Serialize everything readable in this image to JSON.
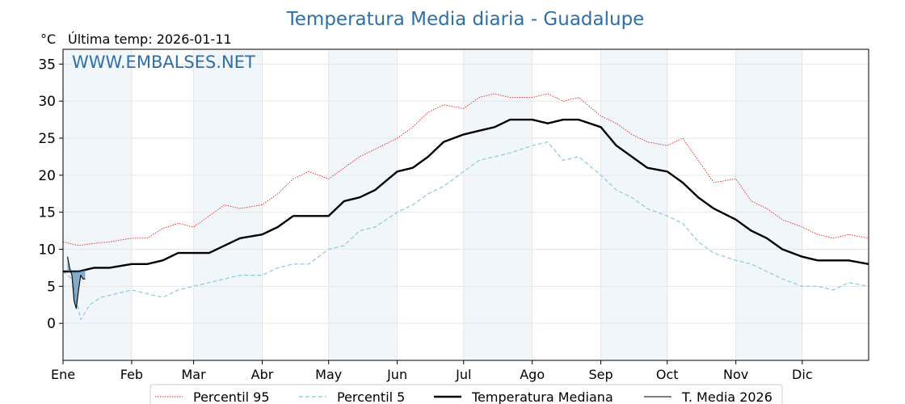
{
  "title": "Temperatura Media diaria - Guadalupe",
  "unit_label": "°C",
  "last_temp_label": "Última temp: 2026-01-11",
  "watermark": "WWW.EMBALSES.NET",
  "chart_data": {
    "type": "line",
    "x_unit": "day_of_year",
    "xlim": [
      1,
      365
    ],
    "ylim": [
      -5,
      37
    ],
    "yticks": [
      0,
      5,
      10,
      15,
      20,
      25,
      30,
      35
    ],
    "grid": true,
    "month_ticks": [
      {
        "label": "Ene",
        "day": 1
      },
      {
        "label": "Feb",
        "day": 32
      },
      {
        "label": "Mar",
        "day": 60
      },
      {
        "label": "Abr",
        "day": 91
      },
      {
        "label": "May",
        "day": 121
      },
      {
        "label": "Jun",
        "day": 152
      },
      {
        "label": "Jul",
        "day": 182
      },
      {
        "label": "Ago",
        "day": 213
      },
      {
        "label": "Sep",
        "day": 244
      },
      {
        "label": "Oct",
        "day": 274
      },
      {
        "label": "Nov",
        "day": 305
      },
      {
        "label": "Dic",
        "day": 335
      }
    ],
    "shaded_months": [
      "Ene",
      "Mar",
      "May",
      "Jul",
      "Sep",
      "Nov"
    ],
    "legend_position": "bottom-center",
    "series": [
      {
        "name": "Percentil 95",
        "color": "#e8231d",
        "style": "dotted",
        "x": [
          1,
          8,
          15,
          22,
          32,
          39,
          46,
          53,
          60,
          67,
          74,
          81,
          91,
          98,
          105,
          112,
          121,
          128,
          135,
          142,
          152,
          159,
          166,
          173,
          182,
          189,
          196,
          203,
          213,
          220,
          227,
          234,
          244,
          251,
          258,
          265,
          274,
          281,
          288,
          295,
          305,
          312,
          319,
          326,
          335,
          342,
          349,
          356,
          365
        ],
        "y": [
          11.0,
          10.5,
          10.8,
          11.0,
          11.5,
          11.5,
          12.8,
          13.5,
          13.0,
          14.5,
          16.0,
          15.5,
          16.0,
          17.5,
          19.5,
          20.5,
          19.5,
          21.0,
          22.5,
          23.5,
          25.0,
          26.5,
          28.5,
          29.5,
          29.0,
          30.5,
          31.0,
          30.5,
          30.5,
          31.0,
          30.0,
          30.5,
          28.0,
          27.0,
          25.5,
          24.5,
          24.0,
          25.0,
          22.0,
          19.0,
          19.5,
          16.5,
          15.5,
          14.0,
          13.0,
          12.0,
          11.5,
          12.0,
          11.5
        ]
      },
      {
        "name": "Percentil 5",
        "color": "#8cc8dc",
        "style": "dashed",
        "x": [
          1,
          5,
          9,
          13,
          18,
          25,
          32,
          39,
          46,
          53,
          60,
          67,
          74,
          81,
          91,
          98,
          105,
          112,
          121,
          128,
          135,
          142,
          152,
          159,
          166,
          173,
          182,
          189,
          196,
          203,
          213,
          220,
          227,
          234,
          244,
          251,
          258,
          265,
          274,
          281,
          288,
          295,
          305,
          312,
          319,
          326,
          335,
          342,
          349,
          356,
          365
        ],
        "y": [
          7.0,
          6.0,
          0.5,
          2.5,
          3.5,
          4.0,
          4.5,
          4.0,
          3.5,
          4.5,
          5.0,
          5.5,
          6.0,
          6.5,
          6.5,
          7.5,
          8.0,
          8.0,
          10.0,
          10.5,
          12.5,
          13.0,
          15.0,
          16.0,
          17.5,
          18.5,
          20.5,
          22.0,
          22.5,
          23.0,
          24.0,
          24.5,
          22.0,
          22.5,
          20.0,
          18.0,
          17.0,
          15.5,
          14.5,
          13.5,
          11.0,
          9.5,
          8.5,
          8.0,
          7.0,
          6.0,
          5.0,
          5.0,
          4.5,
          5.5,
          5.0
        ]
      },
      {
        "name": "Temperatura Mediana",
        "color": "#000000",
        "style": "solid-thick",
        "x": [
          1,
          8,
          15,
          22,
          32,
          39,
          46,
          53,
          60,
          67,
          74,
          81,
          91,
          98,
          105,
          112,
          121,
          128,
          135,
          142,
          152,
          159,
          166,
          173,
          182,
          189,
          196,
          203,
          213,
          220,
          227,
          234,
          244,
          251,
          258,
          265,
          274,
          281,
          288,
          295,
          305,
          312,
          319,
          326,
          335,
          342,
          349,
          356,
          365
        ],
        "y": [
          7.0,
          7.0,
          7.5,
          7.5,
          8.0,
          8.0,
          8.5,
          9.5,
          9.5,
          9.5,
          10.5,
          11.5,
          12.0,
          13.0,
          14.5,
          14.5,
          14.5,
          16.5,
          17.0,
          18.0,
          20.5,
          21.0,
          22.5,
          24.5,
          25.5,
          26.0,
          26.5,
          27.5,
          27.5,
          27.0,
          27.5,
          27.5,
          26.5,
          24.0,
          22.5,
          21.0,
          20.5,
          19.0,
          17.0,
          15.5,
          14.0,
          12.5,
          11.5,
          10.0,
          9.0,
          8.5,
          8.5,
          8.5,
          8.0
        ]
      },
      {
        "name": "T. Media 2026",
        "color": "#000000",
        "fill_color": "#3f78a6",
        "style": "solid-thin",
        "x": [
          3,
          4,
          5,
          6,
          7,
          8,
          9,
          10,
          11
        ],
        "y": [
          9.0,
          7.5,
          6.5,
          3.0,
          2.0,
          4.5,
          6.5,
          6.0,
          6.0
        ]
      }
    ]
  }
}
